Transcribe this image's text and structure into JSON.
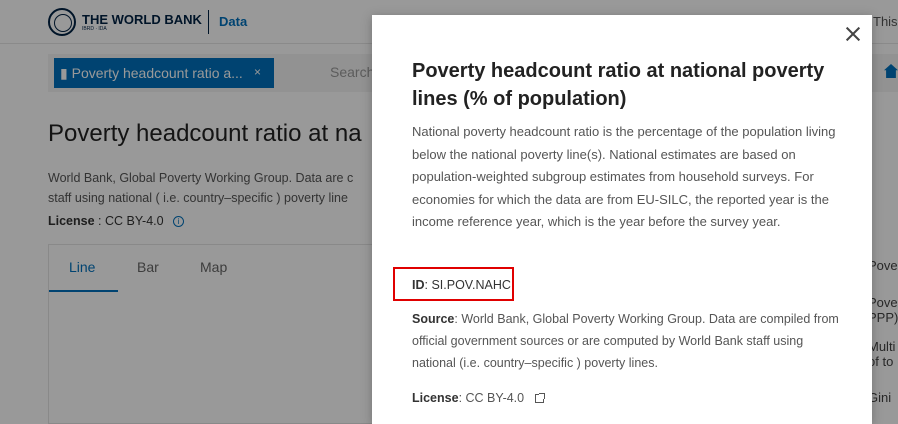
{
  "header": {
    "logo_name": "THE WORLD BANK",
    "logo_sub": "IBRD · IDA",
    "section": "Data",
    "right_text": "This"
  },
  "search": {
    "chip_label": "Poverty headcount ratio a...",
    "chip_close": "×",
    "placeholder": "Search data"
  },
  "page": {
    "title": "Poverty headcount ratio at na",
    "desc_line1": "World Bank, Global Poverty Working Group. Data are c",
    "desc_line2": "staff using national ( i.e. country–specific ) poverty line",
    "license_label": "License",
    "license_value": " : CC BY-4.0",
    "info_glyph": "i"
  },
  "tabs": [
    {
      "label": "Line"
    },
    {
      "label": "Bar"
    },
    {
      "label": "Map"
    }
  ],
  "side_list": [
    "Pove",
    "Pove",
    "PPP)",
    "Multi",
    "of to",
    "Gini"
  ],
  "modal": {
    "title": "Poverty headcount ratio at national poverty lines (% of population)",
    "description": "National poverty headcount ratio is the percentage of the population living below the national poverty line(s). National estimates are based on population-weighted subgroup estimates from household surveys. For economies for which the data are from EU-SILC, the reported year is the income reference year, which is the year before the survey year.",
    "id_label": "ID",
    "id_value": ": SI.POV.NAHC",
    "source_label": "Source",
    "source_value": ": World Bank, Global Poverty Working Group. Data are compiled from official government sources or are computed by World Bank staff using national (i.e. country–specific ) poverty lines.",
    "license_label": "License",
    "license_value": ":  CC BY-4.0"
  },
  "colors": {
    "accent": "#0071bc",
    "highlight": "#e00000"
  }
}
